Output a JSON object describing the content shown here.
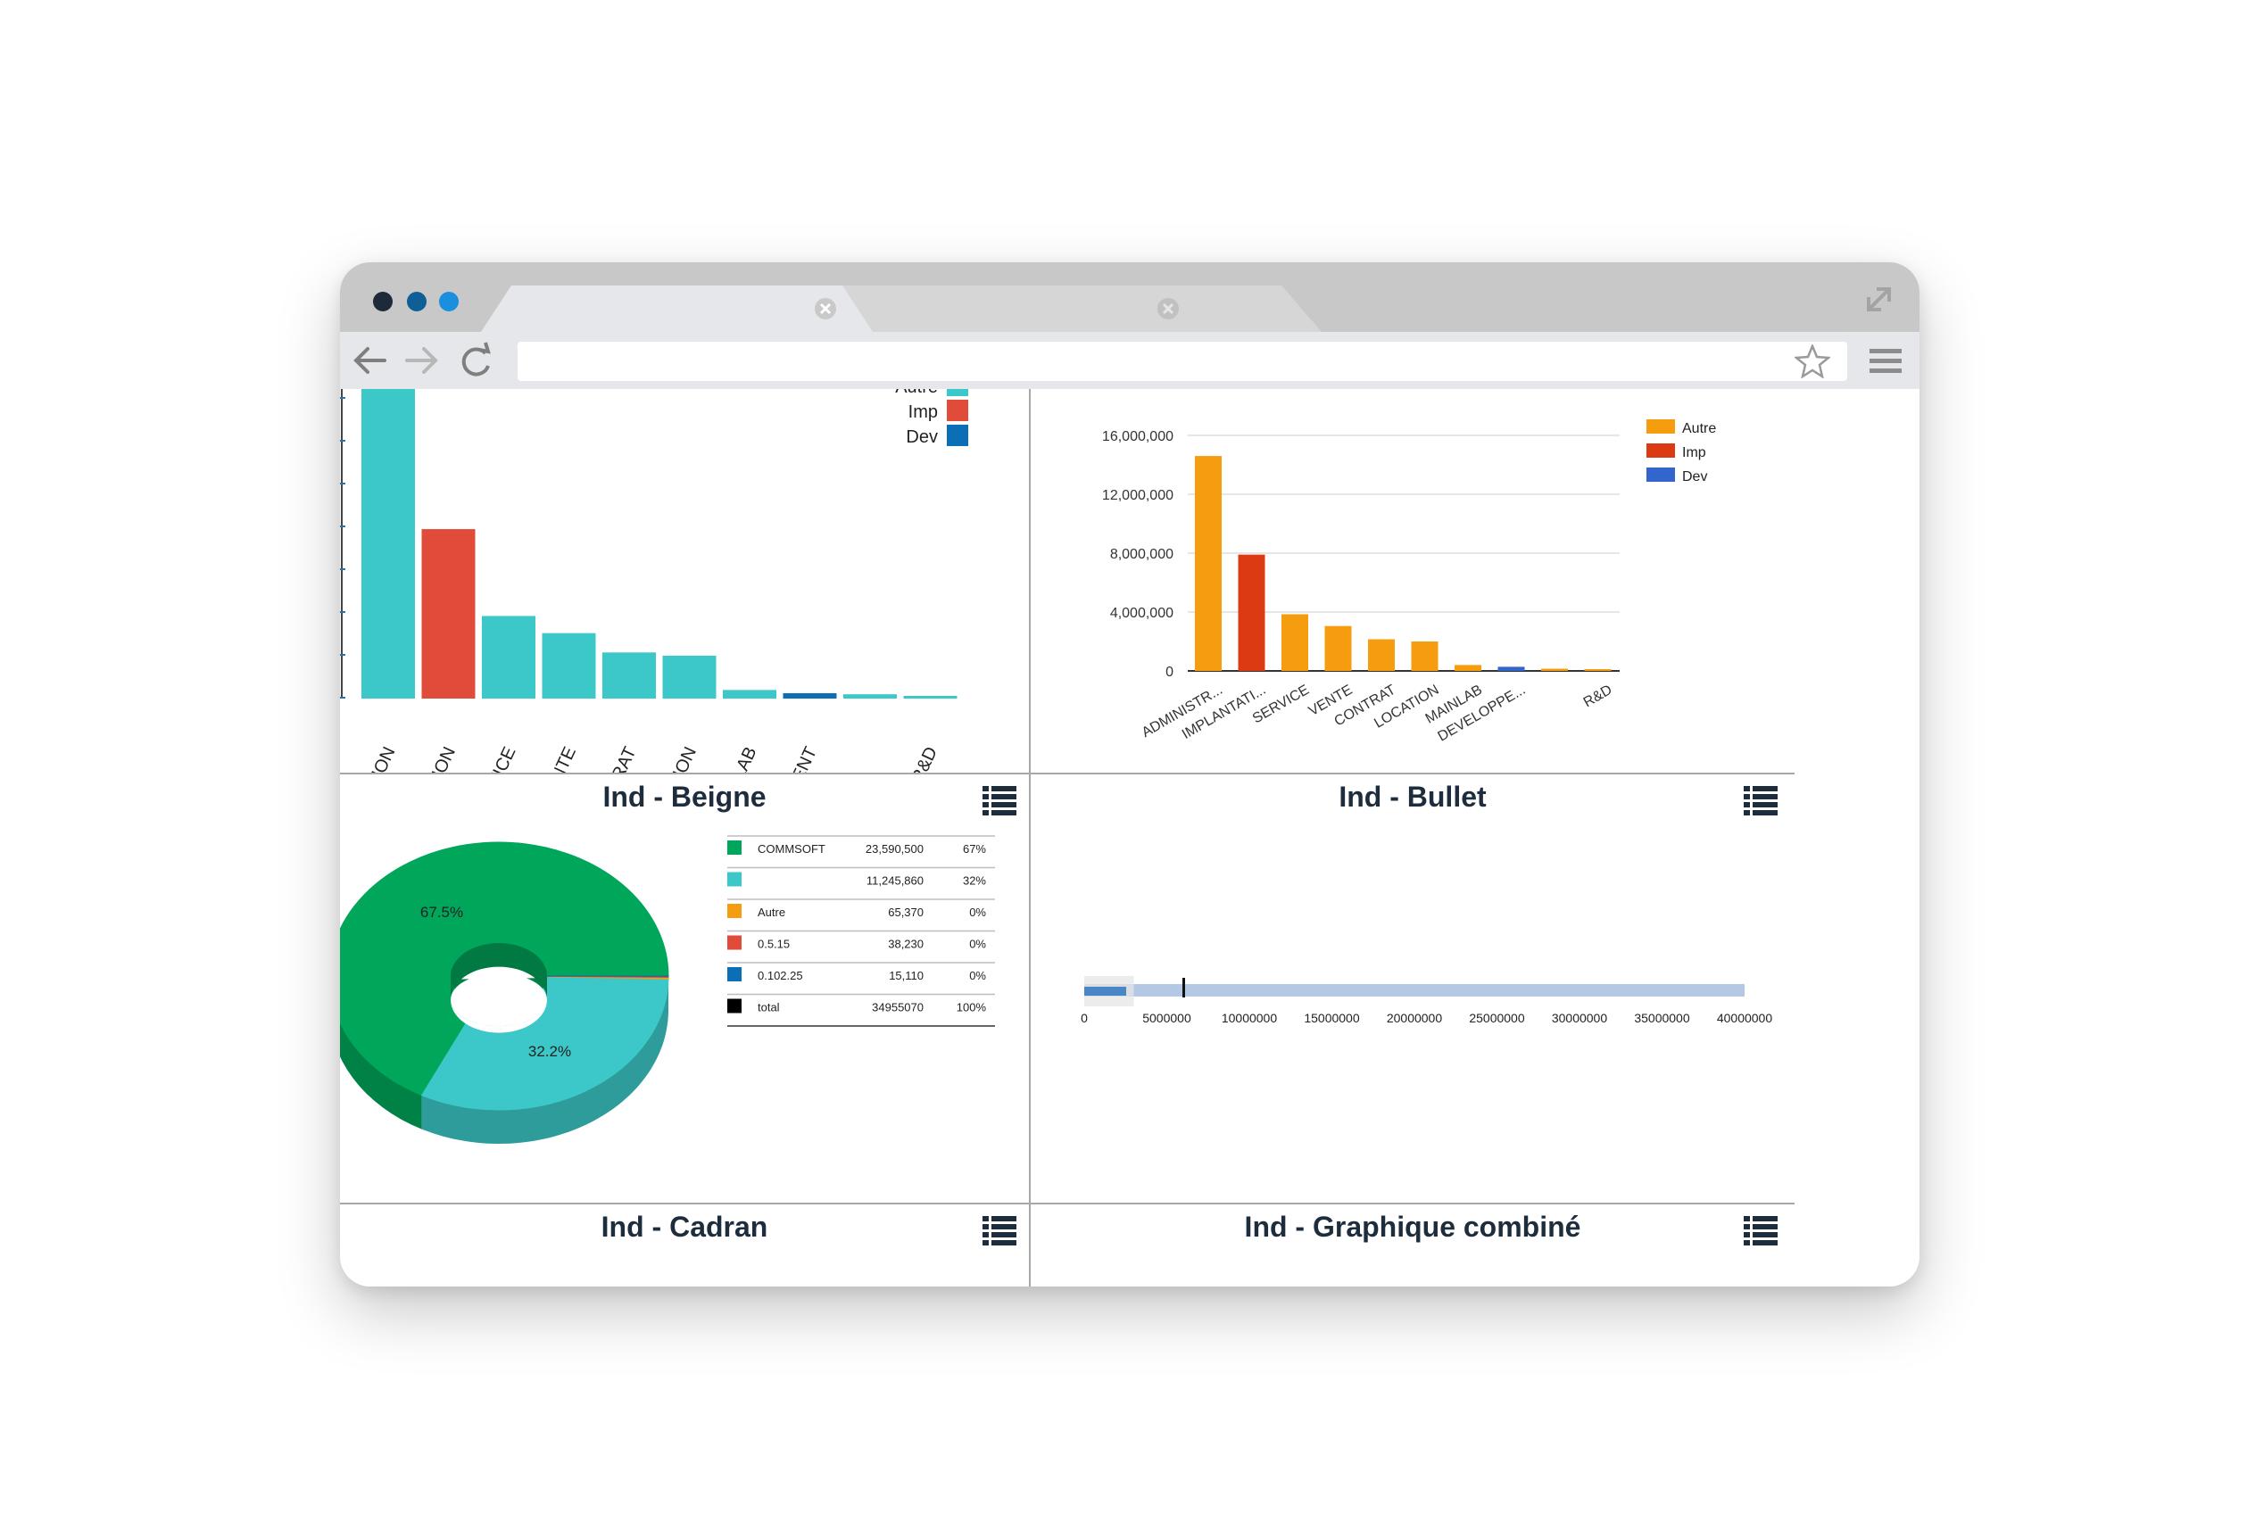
{
  "browser": {
    "traffic_colors": [
      "#1c2a3a",
      "#0e5f96",
      "#1a8fe0"
    ],
    "url": ""
  },
  "icons": {
    "back": "back-arrow-icon",
    "forward": "forward-arrow-icon",
    "reload": "reload-icon",
    "star": "star-icon",
    "menu": "hamburger-menu-icon",
    "expand": "expand-icon",
    "list": "list-icon"
  },
  "panels": [
    {
      "id": "beigne",
      "caption": "Ind - Beigne"
    },
    {
      "id": "bullet",
      "caption": "Ind - Bullet"
    },
    {
      "id": "cadran",
      "caption": "Ind - Cadran"
    },
    {
      "id": "combine",
      "caption": "Ind - Graphique combiné"
    }
  ],
  "chart_data": [
    {
      "type": "bar",
      "panel": "Ind - Beigne",
      "categories": [
        "ATION",
        "ATION",
        "RVICE",
        "ENTE",
        "TRAT",
        "ATION",
        "INLAB",
        "MENT",
        "",
        "R&D"
      ],
      "values": [
        14600000,
        7900000,
        3850000,
        3050000,
        2150000,
        2000000,
        400000,
        250000,
        200000,
        80000
      ],
      "bar_series": [
        "Autre",
        "Imp",
        "Autre",
        "Autre",
        "Autre",
        "Autre",
        "Autre",
        "Dev",
        "Autre",
        "Autre"
      ],
      "legend": [
        "Autre",
        "Imp",
        "Dev"
      ],
      "legend_position": "top-right",
      "colors": {
        "Autre": "#3cc8c8",
        "Imp": "#e04b3a",
        "Dev": "#0a6fb4"
      }
    },
    {
      "type": "bar",
      "panel": "Ind - Bullet",
      "categories": [
        "ADMINISTR...",
        "IMPLANTATI...",
        "SERVICE",
        "VENTE",
        "CONTRAT",
        "LOCATION",
        "MAINLAB",
        "DEVELOPPE...",
        "",
        "R&D"
      ],
      "values": [
        14600000,
        7900000,
        3850000,
        3050000,
        2150000,
        2000000,
        400000,
        280000,
        150000,
        60000
      ],
      "bar_series": [
        "Autre",
        "Imp",
        "Autre",
        "Autre",
        "Autre",
        "Autre",
        "Autre",
        "Dev",
        "Autre",
        "Autre"
      ],
      "y_ticks": [
        "0",
        "4,000,000",
        "8,000,000",
        "12,000,000",
        "16,000,000"
      ],
      "ylim": [
        0,
        16000000
      ],
      "grid": true,
      "legend": [
        "Autre",
        "Imp",
        "Dev"
      ],
      "legend_position": "right",
      "colors": {
        "Autre": "#f59d0e",
        "Imp": "#dc3a12",
        "Dev": "#3366cc"
      }
    },
    {
      "type": "pie",
      "panel": "Ind - Cadran",
      "slices": [
        {
          "label": "COMMSOFT",
          "value": 23590500,
          "display": "23,590,500",
          "pct": "67%",
          "color": "#00a65a"
        },
        {
          "label": "",
          "value": 11245860,
          "display": "11,245,860",
          "pct": "32%",
          "color": "#3cc8c8"
        },
        {
          "label": "Autre",
          "value": 65370,
          "display": "65,370",
          "pct": "0%",
          "color": "#f59d0e"
        },
        {
          "label": "0.5.15",
          "value": 38230,
          "display": "38,230",
          "pct": "0%",
          "color": "#e04b3a"
        },
        {
          "label": "0.102.25",
          "value": 15110,
          "display": "15,110",
          "pct": "0%",
          "color": "#0a6fb4"
        }
      ],
      "total": {
        "label": "total",
        "display": "34955070",
        "pct": "100%",
        "color": "#000000"
      },
      "slice_labels": [
        "67.5%",
        "32.2%"
      ]
    },
    {
      "type": "bar",
      "panel": "Ind - Graphique combiné",
      "subtype": "bullet",
      "range_max": 40000000,
      "value": 2000000,
      "marker": 6000000,
      "background_range": 3000000,
      "x_ticks": [
        "0",
        "5000000",
        "10000000",
        "15000000",
        "20000000",
        "25000000",
        "30000000",
        "35000000",
        "40000000"
      ]
    }
  ]
}
